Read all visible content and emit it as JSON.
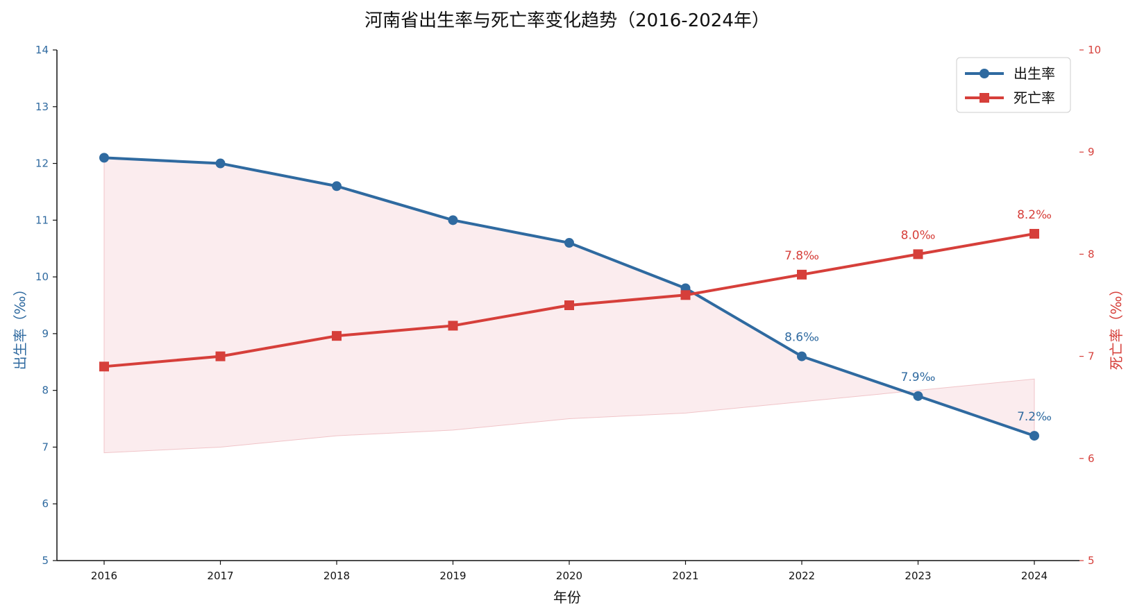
{
  "colors": {
    "birth": "#2f6aa0",
    "death": "#d63f3a",
    "fill": "#f7dde0",
    "axis": "#111111"
  },
  "chart_data": {
    "type": "line",
    "title": "河南省出生率与死亡率变化趋势（2016-2024年）",
    "xlabel": "年份",
    "ylabel_left": "出生率（‰）",
    "ylabel_right": "死亡率（‰）",
    "categories": [
      "2016",
      "2017",
      "2018",
      "2019",
      "2020",
      "2021",
      "2022",
      "2023",
      "2024"
    ],
    "ylim_left": [
      5,
      14
    ],
    "yticks_left": [
      "5",
      "6",
      "7",
      "8",
      "9",
      "10",
      "11",
      "12",
      "13",
      "14"
    ],
    "ylim_right": [
      5,
      10
    ],
    "yticks_right": [
      "5",
      "6",
      "7",
      "8",
      "9",
      "10"
    ],
    "series": [
      {
        "key": "birth",
        "name": "出生率",
        "axis": "left",
        "marker": "circle",
        "values": [
          12.1,
          12.0,
          11.6,
          11.0,
          10.6,
          9.8,
          8.6,
          7.9,
          7.2
        ]
      },
      {
        "key": "death",
        "name": "死亡率",
        "axis": "right",
        "marker": "square",
        "values": [
          6.9,
          7.0,
          7.2,
          7.3,
          7.5,
          7.6,
          7.8,
          8.0,
          8.2
        ]
      }
    ],
    "shaded_band": {
      "upper": "birth",
      "lower": "death",
      "note": "filled area between birth-rate and death-rate values on left axis scale"
    },
    "annotations": [
      {
        "series": "birth",
        "index": 6,
        "text": "8.6‰"
      },
      {
        "series": "birth",
        "index": 7,
        "text": "7.9‰"
      },
      {
        "series": "birth",
        "index": 8,
        "text": "7.2‰"
      },
      {
        "series": "death",
        "index": 6,
        "text": "7.8‰"
      },
      {
        "series": "death",
        "index": 7,
        "text": "8.0‰"
      },
      {
        "series": "death",
        "index": 8,
        "text": "8.2‰"
      }
    ],
    "legend": {
      "position": "top-right",
      "entries": [
        "出生率",
        "死亡率"
      ]
    },
    "grid": false
  }
}
